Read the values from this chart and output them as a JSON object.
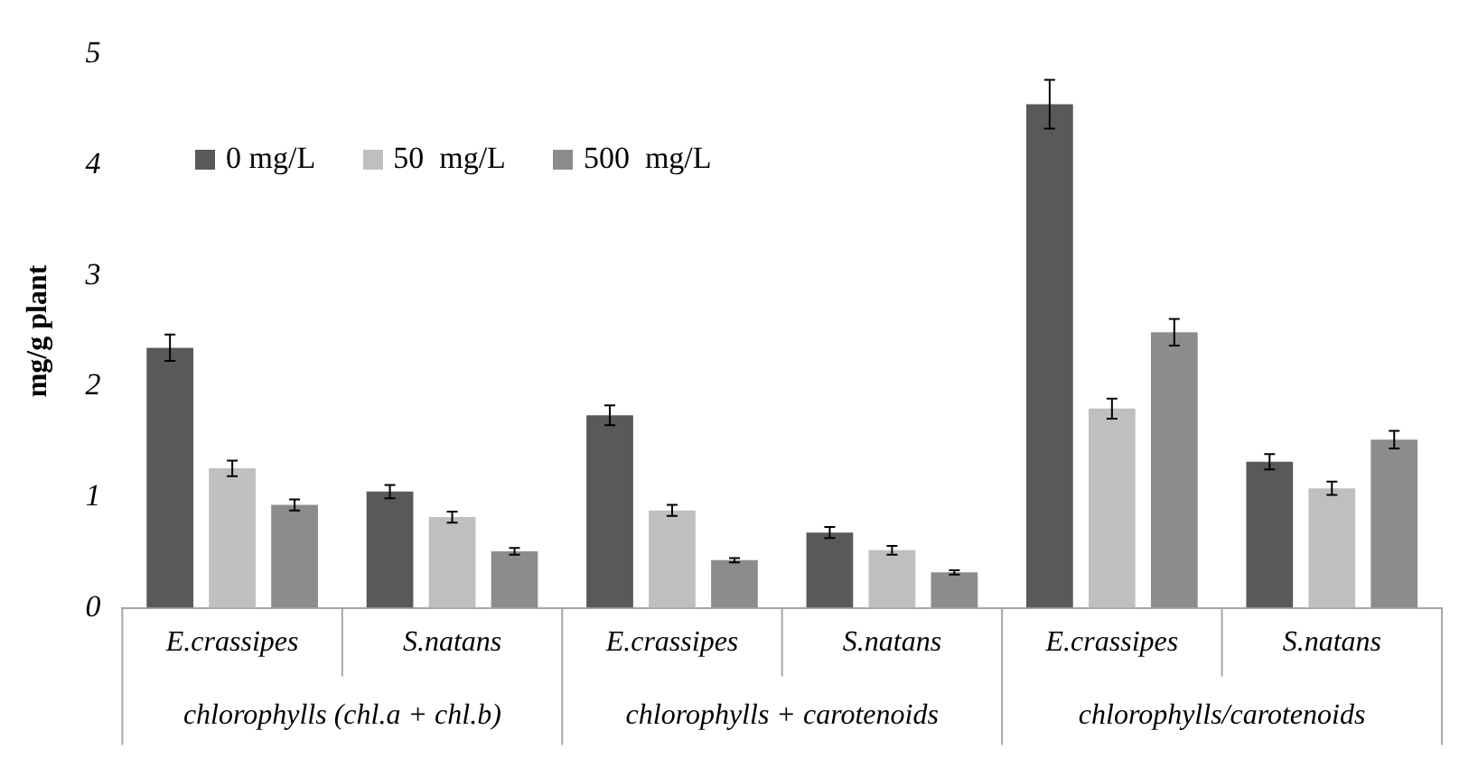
{
  "chart_data": {
    "type": "bar",
    "ylabel": "mg/g plant",
    "categories": [
      "E.crassipes",
      "S.natans",
      "E.crassipes",
      "S.natans",
      "E.crassipes",
      "S.natans"
    ],
    "annotations": [
      "chlorophylls (chl.a + chl.b)",
      "chlorophylls + carotenoids",
      "chlorophylls/carotenoids"
    ],
    "series": [
      {
        "name": "0 mg/L",
        "color": "#595959",
        "values": [
          2.35,
          1.05,
          1.74,
          0.68,
          4.55,
          1.32
        ],
        "errors": [
          0.12,
          0.06,
          0.09,
          0.05,
          0.22,
          0.07
        ]
      },
      {
        "name": "50  mg/L",
        "color": "#bfbfbf",
        "values": [
          1.26,
          0.82,
          0.88,
          0.52,
          1.8,
          1.08
        ],
        "errors": [
          0.07,
          0.05,
          0.05,
          0.04,
          0.09,
          0.06
        ]
      },
      {
        "name": "500  mg/L",
        "color": "#8c8c8c",
        "values": [
          0.93,
          0.51,
          0.43,
          0.32,
          2.49,
          1.52
        ],
        "errors": [
          0.05,
          0.03,
          0.02,
          0.02,
          0.12,
          0.08
        ]
      }
    ],
    "ylim": [
      0,
      5
    ],
    "yticks": [
      0,
      1,
      2,
      3,
      4,
      5
    ],
    "grid": false,
    "legend": "top left"
  }
}
